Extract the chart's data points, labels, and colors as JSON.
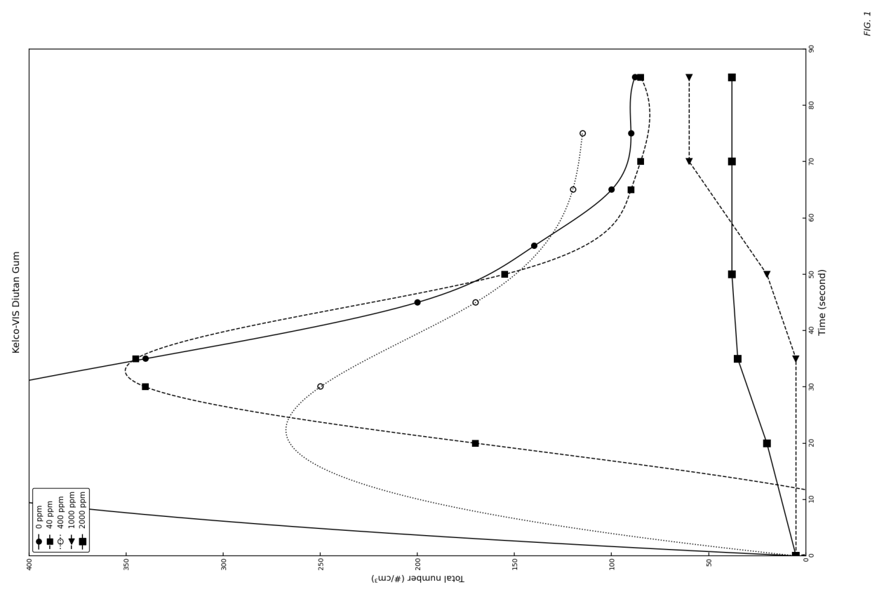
{
  "title": "Kelco-VIS Diutan Gum",
  "xlabel": "Time (second)",
  "ylabel": "Total number (#/cm³)",
  "fig_label": "FIG. 1",
  "xlim": [
    0,
    90
  ],
  "ylim": [
    0,
    400
  ],
  "xticks": [
    0,
    10,
    20,
    30,
    40,
    50,
    60,
    70,
    80,
    90
  ],
  "yticks": [
    0,
    50,
    100,
    150,
    200,
    250,
    300,
    350,
    400
  ],
  "series": [
    {
      "label": "0 ppm",
      "linestyle": "-",
      "marker": "o",
      "marker_size": 8,
      "color": "#000000",
      "fillstyle": "full",
      "x": [
        0,
        35,
        45,
        55,
        65,
        75,
        85
      ],
      "y": [
        5,
        340,
        200,
        140,
        100,
        90,
        88
      ]
    },
    {
      "label": "40 ppm",
      "linestyle": "--",
      "marker": "s",
      "marker_size": 8,
      "color": "#000000",
      "fillstyle": "full",
      "x": [
        0,
        20,
        30,
        35,
        50,
        65,
        70,
        85
      ],
      "y": [
        5,
        170,
        340,
        345,
        155,
        90,
        85,
        85
      ]
    },
    {
      "label": "400 ppm",
      "linestyle": ":",
      "marker": "o",
      "marker_size": 8,
      "color": "#000000",
      "fillstyle": "none",
      "x": [
        0,
        30,
        45,
        65,
        75
      ],
      "y": [
        5,
        250,
        170,
        120,
        115
      ]
    },
    {
      "label": "1000 ppm",
      "linestyle": "--",
      "marker": "<",
      "marker_size": 8,
      "color": "#000000",
      "fillstyle": "full",
      "x": [
        0,
        35,
        50,
        70,
        85
      ],
      "y": [
        5,
        5,
        20,
        60,
        60
      ]
    },
    {
      "label": "2000 ppm",
      "linestyle": "-",
      "marker": "s",
      "marker_size": 10,
      "color": "#000000",
      "fillstyle": "full",
      "x": [
        0,
        20,
        35,
        50,
        70,
        85
      ],
      "y": [
        5,
        20,
        35,
        38,
        38,
        38
      ]
    }
  ]
}
